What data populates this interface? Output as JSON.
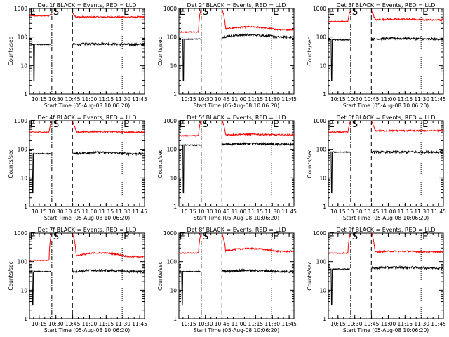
{
  "chart_data": {
    "type": "line",
    "y_scale": "log",
    "ylim": [
      1,
      1000
    ],
    "ylabel": "Counts/sec",
    "xlabel": "Start Time (05-Aug-08 10:06:20)",
    "x_tick_labels": [
      "10:15",
      "10:30",
      "10:45",
      "11:00",
      "11:15",
      "11:30",
      "11:45"
    ],
    "x_ticks_minutes": [
      8.67,
      23.67,
      38.67,
      53.67,
      68.67,
      83.67,
      98.67
    ],
    "xlim_minutes": [
      0,
      103
    ],
    "y_tick_labels": [
      "1",
      "10",
      "100",
      "1000"
    ],
    "y_ticks": [
      1,
      10,
      100,
      1000
    ],
    "series_colors": {
      "events": "#000000",
      "lld": "#ff0000"
    },
    "marker_letters": {
      "start": "E",
      "saa_start": "S",
      "saa_end": "E"
    },
    "panels": [
      {
        "title": "Det 1f BLACK = Events, RED = LLD",
        "events_before": 55,
        "events_after": 55,
        "events_bump": 1.05,
        "lld_before": 550,
        "lld_after": 500,
        "lld_peak": 650,
        "lld_bump": 1.0,
        "dip_min": 4,
        "dash_dot_min": 20,
        "dashed_min": 38.5,
        "dotted_min": 83,
        "marker_start_min": 1,
        "marker_s_min": 20,
        "marker_e_min": 83
      },
      {
        "title": "Det 2f BLACK = Events, RED = LLD",
        "events_before": 85,
        "events_after": 100,
        "events_bump": 1.2,
        "lld_before": 150,
        "lld_after": 180,
        "lld_peak": 900,
        "lld_bump": 1.25,
        "dip_min": 4,
        "dash_dot_min": 20,
        "dashed_min": 38.5,
        "dotted_min": 83,
        "marker_start_min": 1,
        "marker_s_min": 20,
        "marker_e_min": 83
      },
      {
        "title": "Det 3f BLACK = Events, RED = LLD",
        "events_before": 80,
        "events_after": 85,
        "events_bump": 1.05,
        "lld_before": 350,
        "lld_after": 400,
        "lld_peak": 800,
        "lld_bump": 1.05,
        "dip_min": 3,
        "dash_dot_min": 20,
        "dashed_min": 38.5,
        "dotted_min": 83,
        "marker_start_min": 1,
        "marker_s_min": 20,
        "marker_e_min": 83
      },
      {
        "title": "Det 4f BLACK = Events, RED = LLD",
        "events_before": 70,
        "events_after": 70,
        "events_bump": 1.1,
        "lld_before": 400,
        "lld_after": 400,
        "lld_peak": 900,
        "lld_bump": 1.05,
        "dip_min": 3,
        "dash_dot_min": 20,
        "dashed_min": 38.5,
        "dotted_min": 83,
        "marker_start_min": 1,
        "marker_s_min": 20,
        "marker_e_min": 83
      },
      {
        "title": "Det 5f BLACK = Events, RED = LLD",
        "events_before": 140,
        "events_after": 150,
        "events_bump": 1.05,
        "lld_before": 300,
        "lld_after": 320,
        "lld_peak": 1000,
        "lld_bump": 1.05,
        "dip_min": 4,
        "dash_dot_min": 20,
        "dashed_min": 38.5,
        "dotted_min": 83,
        "marker_start_min": 1,
        "marker_s_min": 20,
        "marker_e_min": 83
      },
      {
        "title": "Det 6f BLACK = Events, RED = LLD",
        "events_before": 80,
        "events_after": 80,
        "events_bump": 1.0,
        "lld_before": 400,
        "lld_after": 450,
        "lld_peak": 900,
        "lld_bump": 1.0,
        "dip_min": 3,
        "dash_dot_min": 20,
        "dashed_min": 38.5,
        "dotted_min": 83,
        "marker_start_min": 1,
        "marker_s_min": 20,
        "marker_e_min": 83
      },
      {
        "title": "Det 7f BLACK = Events, RED = LLD",
        "events_before": 45,
        "events_after": 45,
        "events_bump": 1.1,
        "lld_before": 110,
        "lld_after": 150,
        "lld_peak": 900,
        "lld_bump": 1.35,
        "dip_min": 3,
        "dash_dot_min": 20,
        "dashed_min": 38.5,
        "dotted_min": 83,
        "marker_start_min": 1,
        "marker_s_min": 20,
        "marker_e_min": 83
      },
      {
        "title": "Det 8f BLACK = Events, RED = LLD",
        "events_before": 45,
        "events_after": 45,
        "events_bump": 1.1,
        "lld_before": 200,
        "lld_after": 230,
        "lld_peak": 900,
        "lld_bump": 1.25,
        "dip_min": 3,
        "dash_dot_min": 20,
        "dashed_min": 38.5,
        "dotted_min": 83,
        "marker_start_min": 1,
        "marker_s_min": 20,
        "marker_e_min": 83
      },
      {
        "title": "Det 9f BLACK = Events, RED = LLD",
        "events_before": 55,
        "events_after": 60,
        "events_bump": 1.05,
        "lld_before": 200,
        "lld_after": 220,
        "lld_peak": 950,
        "lld_bump": 1.05,
        "dip_min": 3,
        "dash_dot_min": 20,
        "dashed_min": 38.5,
        "dotted_min": 83,
        "marker_start_min": 1,
        "marker_s_min": 20,
        "marker_e_min": 83
      }
    ]
  }
}
